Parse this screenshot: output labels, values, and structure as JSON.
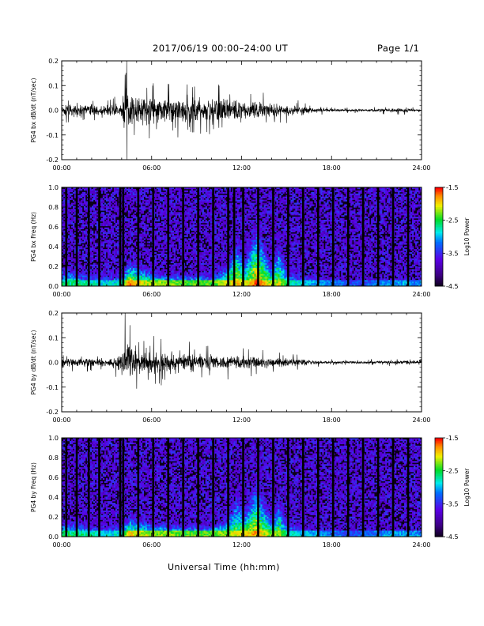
{
  "header": {
    "title": "2017/06/19  00:00–24:00 UT",
    "page": "Page 1/1"
  },
  "footer": {
    "xlabel": "Universal Time (hh:mm)"
  },
  "colors": {
    "trace": "#000000",
    "background": "#000000"
  },
  "chart_data": [
    {
      "type": "line",
      "ylabel": "PG4 bx dB/dt (nT/sec)",
      "xlim": [
        0,
        24
      ],
      "ylim": [
        -0.2,
        0.2
      ],
      "x_ticks": [
        "00:00",
        "06:00",
        "12:00",
        "18:00",
        "24:00"
      ],
      "y_ticks": [
        "-0.2",
        "-0.1",
        "0.0",
        "0.1",
        "0.2"
      ],
      "envelope": {
        "hours": [
          0,
          1,
          2,
          3,
          4,
          4.3,
          4.6,
          5,
          6,
          7,
          8,
          9,
          10,
          11,
          12,
          13,
          14,
          15,
          16,
          17,
          18,
          19,
          20,
          21,
          22,
          23,
          24
        ],
        "amplitude": [
          0.05,
          0.05,
          0.045,
          0.04,
          0.06,
          0.2,
          0.15,
          0.11,
          0.1,
          0.1,
          0.09,
          0.09,
          0.09,
          0.09,
          0.08,
          0.07,
          0.06,
          0.045,
          0.03,
          0.02,
          0.012,
          0.01,
          0.012,
          0.012,
          0.015,
          0.015,
          0.012
        ]
      }
    },
    {
      "type": "heatmap",
      "ylabel": "PG4 bx Freq (Hz)",
      "xlim": [
        0,
        24
      ],
      "ylim": [
        0,
        1
      ],
      "x_ticks": [
        "00:00",
        "06:00",
        "12:00",
        "18:00",
        "24:00"
      ],
      "y_ticks": [
        "0.0",
        "0.2",
        "0.4",
        "0.6",
        "0.8",
        "1.0"
      ],
      "colorbar": {
        "label": "Log10 Power",
        "ticks": [
          "-1.5",
          "-2.5",
          "-3.5",
          "-4.5"
        ],
        "range": [
          -4.5,
          -1.5
        ]
      },
      "gap_hours": [
        0.3,
        1.0,
        1.8,
        2.5,
        3.9,
        4.1,
        5.1,
        6.1,
        7.1,
        8.1,
        9.1,
        10.1,
        11.1,
        11.5,
        12.1,
        13.1,
        14.1,
        15.1,
        16.1,
        17.1,
        18.1,
        19.1,
        20.1,
        21.1,
        22.1,
        23.1
      ],
      "activity": {
        "hours": [
          0,
          1,
          2,
          3,
          4,
          4.5,
          5,
          6,
          7,
          8,
          9,
          10,
          11,
          11.7,
          12.2,
          13,
          14,
          14.5,
          15,
          16,
          17,
          18,
          19,
          20,
          21,
          22,
          23,
          24
        ],
        "max_freq": [
          0.25,
          0.2,
          0.15,
          0.15,
          0.15,
          0.3,
          0.25,
          0.2,
          0.15,
          0.15,
          0.15,
          0.15,
          0.25,
          0.55,
          0.3,
          0.75,
          0.25,
          0.55,
          0.2,
          0.15,
          0.1,
          0.08,
          0.08,
          0.08,
          0.08,
          0.08,
          0.08,
          0.08
        ],
        "intensity": [
          0.6,
          0.6,
          0.55,
          0.5,
          0.55,
          0.95,
          0.85,
          0.75,
          0.75,
          0.7,
          0.7,
          0.7,
          0.8,
          0.85,
          0.8,
          0.95,
          0.75,
          0.8,
          0.6,
          0.5,
          0.45,
          0.4,
          0.35,
          0.35,
          0.4,
          0.45,
          0.45,
          0.4
        ]
      }
    },
    {
      "type": "line",
      "ylabel": "PG4 by dB/dt (nT/sec)",
      "xlim": [
        0,
        24
      ],
      "ylim": [
        -0.2,
        0.2
      ],
      "x_ticks": [
        "00:00",
        "06:00",
        "12:00",
        "18:00",
        "24:00"
      ],
      "y_ticks": [
        "-0.2",
        "-0.1",
        "0.0",
        "0.1",
        "0.2"
      ],
      "envelope": {
        "hours": [
          0,
          1,
          2,
          3,
          4,
          4.2,
          4.5,
          5,
          6,
          7,
          8,
          9,
          10,
          11,
          12,
          13,
          14,
          15,
          16,
          17,
          18,
          19,
          20,
          21,
          22,
          23,
          24
        ],
        "amplitude": [
          0.035,
          0.035,
          0.03,
          0.03,
          0.07,
          0.22,
          0.2,
          0.1,
          0.09,
          0.09,
          0.09,
          0.07,
          0.06,
          0.06,
          0.05,
          0.05,
          0.04,
          0.035,
          0.025,
          0.015,
          0.012,
          0.01,
          0.01,
          0.012,
          0.013,
          0.015,
          0.012
        ]
      }
    },
    {
      "type": "heatmap",
      "ylabel": "PG4 by Freq (Hz)",
      "xlim": [
        0,
        24
      ],
      "ylim": [
        0,
        1
      ],
      "x_ticks": [
        "00:00",
        "06:00",
        "12:00",
        "18:00",
        "24:00"
      ],
      "y_ticks": [
        "0.0",
        "0.2",
        "0.4",
        "0.6",
        "0.8",
        "1.0"
      ],
      "colorbar": {
        "label": "Log10 Power",
        "ticks": [
          "-1.5",
          "-2.5",
          "-3.5",
          "-4.5"
        ],
        "range": [
          -4.5,
          -1.5
        ]
      },
      "gap_hours": [
        0.3,
        1.0,
        1.8,
        2.5,
        3.9,
        4.1,
        5.1,
        6.1,
        7.1,
        8.1,
        9.1,
        10.1,
        11.1,
        12.1,
        13.1,
        14.1,
        15.1,
        16.1,
        17.1,
        18.1,
        19.1,
        20.1,
        21.1,
        22.1,
        23.1
      ],
      "activity": {
        "hours": [
          0,
          1,
          2,
          3,
          4,
          4.5,
          5,
          6,
          7,
          8,
          9,
          10,
          11,
          11.7,
          12.2,
          13,
          14,
          14.5,
          15,
          16,
          17,
          18,
          19,
          20,
          21,
          22,
          23,
          24
        ],
        "max_freq": [
          0.2,
          0.2,
          0.15,
          0.15,
          0.15,
          0.25,
          0.22,
          0.18,
          0.15,
          0.15,
          0.15,
          0.15,
          0.22,
          0.5,
          0.3,
          0.65,
          0.25,
          0.45,
          0.2,
          0.12,
          0.1,
          0.08,
          0.08,
          0.08,
          0.08,
          0.08,
          0.08,
          0.08
        ],
        "intensity": [
          0.6,
          0.6,
          0.55,
          0.5,
          0.55,
          0.85,
          0.8,
          0.75,
          0.75,
          0.7,
          0.7,
          0.7,
          0.75,
          0.8,
          0.8,
          0.9,
          0.7,
          0.75,
          0.55,
          0.5,
          0.45,
          0.4,
          0.35,
          0.35,
          0.4,
          0.45,
          0.45,
          0.4
        ]
      }
    }
  ]
}
